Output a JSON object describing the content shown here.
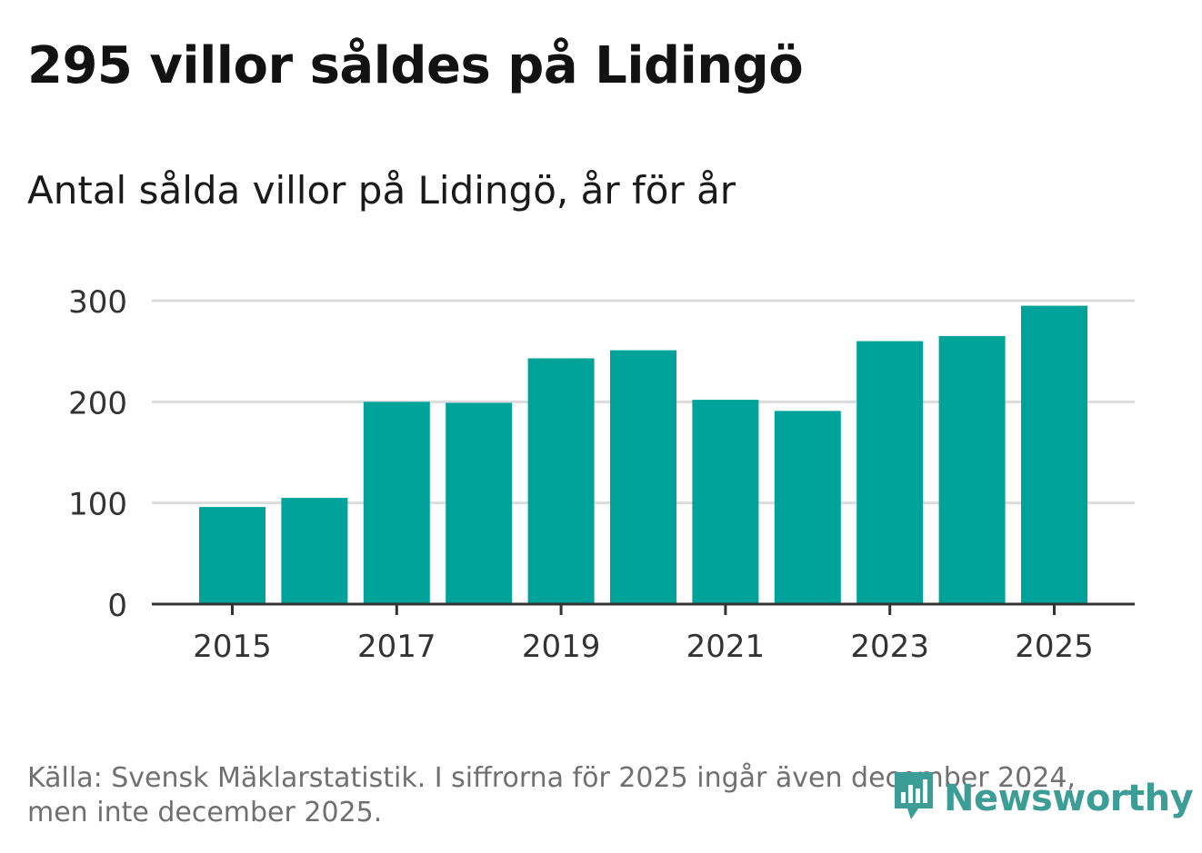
{
  "header": {
    "title": "295 villor såldes på Lidingö",
    "subtitle": "Antal sålda villor på Lidingö, år för år"
  },
  "footer": {
    "source_line1": "Källa: Svensk Mäklarstatistik. I siffrorna för 2025 ingår även december 2024,",
    "source_line2": "men inte december 2025.",
    "brand_name": "Newsworthy",
    "brand_icon": "bar-chart-speech-bubble-icon"
  },
  "colors": {
    "bar": "#00a39a",
    "grid": "#dcdcdc",
    "axis": "#333333",
    "tick_text": "#333333",
    "brand": "#3c9c96"
  },
  "chart_data": {
    "type": "bar",
    "title": "295 villor såldes på Lidingö",
    "subtitle": "Antal sålda villor på Lidingö, år för år",
    "categories": [
      "2015",
      "2016",
      "2017",
      "2018",
      "2019",
      "2020",
      "2021",
      "2022",
      "2023",
      "2024",
      "2025"
    ],
    "values": [
      96,
      105,
      200,
      199,
      243,
      251,
      202,
      191,
      260,
      265,
      295
    ],
    "xlabel": "",
    "ylabel": "",
    "ylim": [
      0,
      300
    ],
    "yticks": [
      0,
      100,
      200,
      300
    ],
    "xtick_labels": [
      "2015",
      "2017",
      "2019",
      "2021",
      "2023",
      "2025"
    ],
    "grid": true,
    "legend": "none"
  }
}
